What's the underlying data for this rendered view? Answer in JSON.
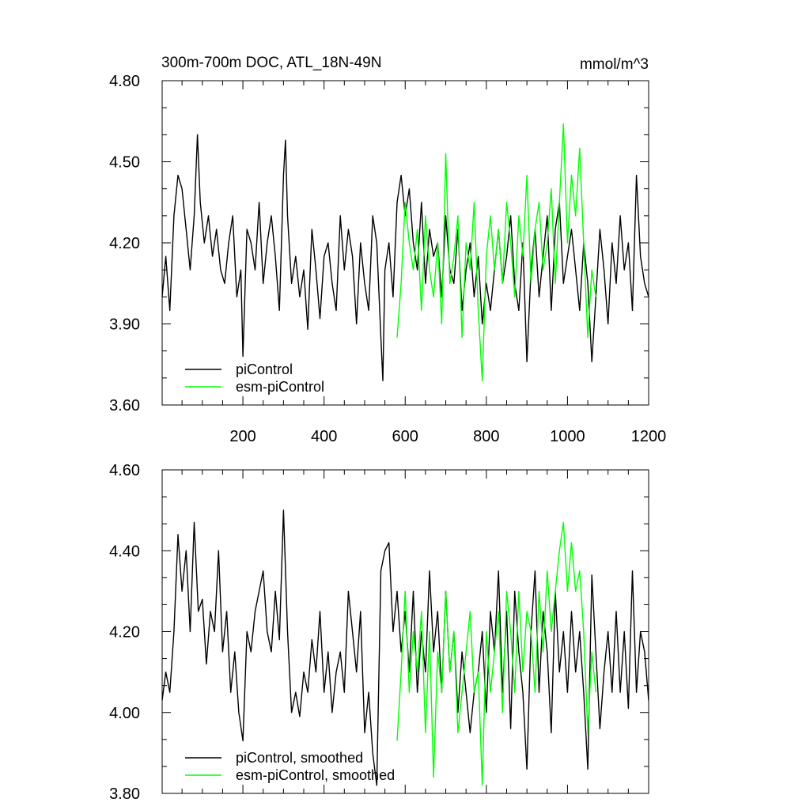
{
  "page": {
    "title": "300m-700m DOC, ATL_18N-49N",
    "units": "mmol/m^3"
  },
  "colors": {
    "picontrol": "#000000",
    "esm_picontrol": "#00ff00"
  },
  "chart_data": [
    {
      "type": "line",
      "title": "300m-700m DOC, ATL_18N-49N",
      "units_label": "mmol/m^3",
      "xlim": [
        1,
        1200
      ],
      "ylim": [
        3.6,
        4.8
      ],
      "x_ticks": [
        200,
        400,
        600,
        800,
        1000,
        1200
      ],
      "x_tick_labels": [
        "200",
        "400",
        "600",
        "800",
        "1000",
        "1200"
      ],
      "y_ticks": [
        3.6,
        3.9,
        4.2,
        4.5,
        4.8
      ],
      "y_tick_labels": [
        "3.60",
        "3.90",
        "4.20",
        "4.50",
        "4.80"
      ],
      "legend_position": "bottom-left",
      "series": [
        {
          "name": "piControl",
          "color": "#000000",
          "x": [
            1,
            10,
            20,
            30,
            40,
            50,
            60,
            70,
            80,
            88,
            95,
            105,
            115,
            125,
            135,
            145,
            155,
            165,
            175,
            185,
            195,
            200,
            210,
            220,
            230,
            240,
            250,
            260,
            270,
            280,
            290,
            300,
            305,
            310,
            320,
            330,
            340,
            350,
            360,
            370,
            380,
            390,
            400,
            410,
            420,
            430,
            440,
            450,
            460,
            470,
            480,
            490,
            500,
            510,
            520,
            530,
            540,
            545,
            550,
            560,
            570,
            580,
            590,
            600,
            610,
            620,
            630,
            640,
            650,
            660,
            670,
            680,
            690,
            700,
            710,
            720,
            730,
            740,
            750,
            760,
            770,
            780,
            790,
            800,
            810,
            820,
            830,
            840,
            850,
            860,
            870,
            880,
            890,
            900,
            910,
            920,
            930,
            940,
            950,
            960,
            970,
            980,
            990,
            1000,
            1010,
            1020,
            1030,
            1040,
            1050,
            1060,
            1070,
            1080,
            1090,
            1100,
            1110,
            1120,
            1130,
            1140,
            1150,
            1160,
            1170,
            1180,
            1190,
            1200
          ],
          "values": [
            4.0,
            4.15,
            3.95,
            4.3,
            4.45,
            4.4,
            4.25,
            4.1,
            4.3,
            4.6,
            4.35,
            4.2,
            4.3,
            4.15,
            4.25,
            4.1,
            4.05,
            4.2,
            4.3,
            4.0,
            4.1,
            3.78,
            4.25,
            4.2,
            4.1,
            4.35,
            4.05,
            4.2,
            4.3,
            4.15,
            3.95,
            4.45,
            4.58,
            4.3,
            4.05,
            4.15,
            4.0,
            4.1,
            3.88,
            4.25,
            4.1,
            3.92,
            4.15,
            4.2,
            4.05,
            3.95,
            4.3,
            4.1,
            4.25,
            4.15,
            3.9,
            4.2,
            4.05,
            3.95,
            4.3,
            4.2,
            3.85,
            3.69,
            4.1,
            4.2,
            4.0,
            4.35,
            4.45,
            4.3,
            4.4,
            4.2,
            4.1,
            4.35,
            4.05,
            4.25,
            4.15,
            4.2,
            4.0,
            4.3,
            4.1,
            4.05,
            4.25,
            3.95,
            4.1,
            4.2,
            4.0,
            4.15,
            3.9,
            4.05,
            3.95,
            4.1,
            4.25,
            4.05,
            4.15,
            4.3,
            4.05,
            3.95,
            4.2,
            3.76,
            4.1,
            4.25,
            4.0,
            4.15,
            4.3,
            3.95,
            4.25,
            4.35,
            4.05,
            4.15,
            4.25,
            4.1,
            3.95,
            4.2,
            4.05,
            3.76,
            4.0,
            4.25,
            4.1,
            3.9,
            4.2,
            4.05,
            4.3,
            4.1,
            4.2,
            3.95,
            4.45,
            4.15,
            4.05,
            4.0
          ]
        },
        {
          "name": "esm-piControl",
          "color": "#00ff00",
          "x": [
            580,
            590,
            600,
            610,
            620,
            630,
            640,
            650,
            660,
            670,
            680,
            690,
            700,
            710,
            720,
            730,
            740,
            750,
            760,
            770,
            780,
            790,
            800,
            810,
            820,
            830,
            840,
            850,
            860,
            870,
            880,
            890,
            900,
            910,
            920,
            930,
            940,
            950,
            960,
            970,
            980,
            990,
            1000,
            1010,
            1020,
            1030,
            1040,
            1050,
            1060,
            1070
          ],
          "values": [
            3.85,
            4.05,
            4.35,
            4.2,
            4.1,
            4.25,
            3.95,
            4.3,
            4.1,
            4.0,
            4.2,
            3.9,
            4.53,
            4.05,
            4.15,
            4.3,
            3.85,
            4.2,
            4.1,
            4.35,
            3.95,
            3.69,
            4.15,
            4.3,
            4.1,
            4.25,
            4.05,
            4.35,
            4.2,
            4.0,
            4.3,
            4.15,
            4.45,
            4.05,
            4.25,
            4.35,
            4.1,
            4.2,
            4.4,
            4.05,
            4.35,
            4.64,
            4.2,
            4.45,
            4.3,
            4.55,
            4.2,
            3.85,
            4.1,
            4.0
          ]
        }
      ]
    },
    {
      "type": "line",
      "title": "",
      "xlim": [
        1,
        1200
      ],
      "ylim": [
        3.8,
        4.6
      ],
      "x_ticks": [
        200,
        400,
        600,
        800,
        1000,
        1200
      ],
      "x_tick_labels": [],
      "y_ticks": [
        3.8,
        4.0,
        4.2,
        4.4,
        4.6
      ],
      "y_tick_labels": [
        "3.80",
        "4.00",
        "4.20",
        "4.40",
        "4.60"
      ],
      "legend_position": "bottom-left",
      "series": [
        {
          "name": "piControl, smoothed",
          "color": "#000000",
          "x": [
            1,
            10,
            20,
            30,
            40,
            50,
            60,
            70,
            80,
            90,
            100,
            110,
            120,
            130,
            140,
            150,
            160,
            170,
            180,
            190,
            200,
            210,
            220,
            230,
            240,
            250,
            260,
            270,
            280,
            290,
            300,
            310,
            320,
            330,
            340,
            350,
            360,
            370,
            380,
            390,
            400,
            410,
            420,
            430,
            440,
            450,
            460,
            470,
            480,
            490,
            500,
            510,
            520,
            530,
            540,
            550,
            560,
            570,
            580,
            590,
            600,
            610,
            620,
            630,
            640,
            650,
            660,
            670,
            680,
            690,
            700,
            710,
            720,
            730,
            740,
            750,
            760,
            770,
            780,
            790,
            800,
            810,
            820,
            830,
            840,
            850,
            860,
            870,
            880,
            890,
            900,
            910,
            920,
            930,
            940,
            950,
            960,
            970,
            980,
            990,
            1000,
            1010,
            1020,
            1030,
            1040,
            1050,
            1060,
            1070,
            1080,
            1090,
            1100,
            1110,
            1120,
            1130,
            1140,
            1150,
            1160,
            1170,
            1180,
            1190,
            1200
          ],
          "values": [
            4.03,
            4.1,
            4.05,
            4.2,
            4.44,
            4.3,
            4.4,
            4.2,
            4.47,
            4.25,
            4.28,
            4.12,
            4.25,
            4.2,
            4.4,
            4.15,
            4.25,
            4.05,
            4.15,
            4.0,
            3.93,
            4.2,
            4.15,
            4.25,
            4.3,
            4.35,
            4.2,
            4.15,
            4.3,
            4.18,
            4.5,
            4.2,
            4.0,
            4.05,
            3.99,
            4.1,
            4.05,
            4.18,
            4.1,
            4.25,
            4.05,
            4.15,
            4.0,
            4.1,
            4.15,
            4.05,
            4.3,
            4.2,
            4.1,
            4.25,
            3.95,
            4.05,
            3.9,
            3.82,
            4.35,
            4.4,
            4.42,
            4.2,
            4.3,
            4.15,
            4.25,
            4.1,
            4.3,
            4.05,
            4.2,
            4.1,
            4.35,
            4.15,
            4.25,
            4.05,
            4.3,
            4.1,
            4.2,
            4.0,
            4.15,
            4.05,
            3.95,
            4.05,
            4.1,
            4.2,
            4.0,
            4.25,
            4.15,
            4.35,
            4.05,
            4.25,
            3.96,
            4.3,
            4.15,
            4.05,
            3.86,
            4.2,
            4.35,
            4.05,
            4.25,
            4.15,
            3.95,
            4.3,
            4.1,
            4.2,
            4.05,
            4.25,
            4.1,
            4.2,
            4.05,
            3.86,
            4.34,
            4.15,
            3.96,
            4.1,
            4.2,
            4.05,
            4.25,
            4.05,
            4.2,
            4.01,
            4.35,
            4.05,
            4.2,
            4.15,
            4.03
          ]
        },
        {
          "name": "esm-piControl, smoothed",
          "color": "#00ff00",
          "x": [
            580,
            590,
            600,
            610,
            620,
            630,
            640,
            650,
            660,
            670,
            680,
            690,
            700,
            710,
            720,
            730,
            740,
            750,
            760,
            770,
            780,
            790,
            800,
            810,
            820,
            830,
            840,
            850,
            860,
            870,
            880,
            890,
            900,
            910,
            920,
            930,
            940,
            950,
            960,
            970,
            980,
            990,
            1000,
            1010,
            1020,
            1030,
            1040,
            1050,
            1060,
            1070
          ],
          "values": [
            3.93,
            4.1,
            4.3,
            4.05,
            4.2,
            4.1,
            4.25,
            3.95,
            4.2,
            3.84,
            4.15,
            4.05,
            4.3,
            4.1,
            4.2,
            3.95,
            4.05,
            4.15,
            4.25,
            4.05,
            4.1,
            3.82,
            4.2,
            4.05,
            4.15,
            4.25,
            4.0,
            4.3,
            4.2,
            4.05,
            4.3,
            4.1,
            4.25,
            4.2,
            4.05,
            4.3,
            4.15,
            4.35,
            4.2,
            4.3,
            4.4,
            4.47,
            4.3,
            4.42,
            4.3,
            4.35,
            4.2,
            3.95,
            4.15,
            4.05
          ]
        }
      ]
    }
  ]
}
